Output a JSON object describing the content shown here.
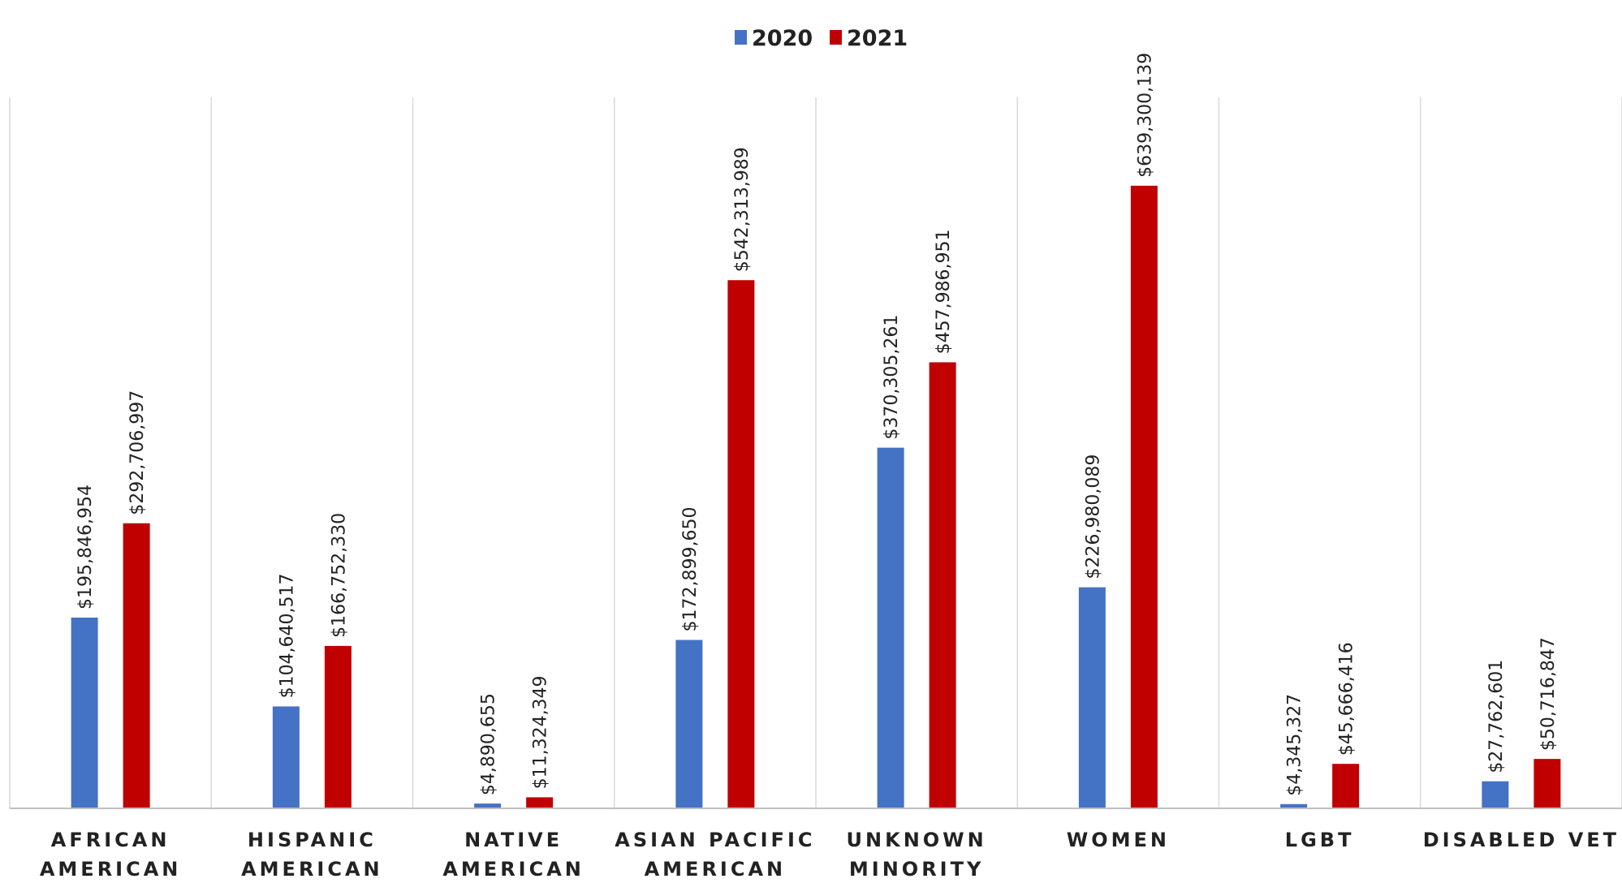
{
  "chart_data": {
    "type": "bar",
    "categories": [
      [
        "AFRICAN",
        "AMERICAN"
      ],
      [
        "HISPANIC",
        "AMERICAN"
      ],
      [
        "NATIVE",
        "AMERICAN"
      ],
      [
        "ASIAN PACIFIC",
        "AMERICAN"
      ],
      [
        "UNKNOWN",
        "MINORITY"
      ],
      [
        "WOMEN"
      ],
      [
        "LGBT"
      ],
      [
        "DISABLED VET"
      ]
    ],
    "series": [
      {
        "name": "2020",
        "color": "#4472C4",
        "values": [
          195846954,
          104640517,
          4890655,
          172899650,
          370305261,
          226980089,
          4345327,
          27762601
        ],
        "labels": [
          "$195,846,954",
          "$104,640,517",
          "$4,890,655",
          "$172,899,650",
          "$370,305,261",
          "$226,980,089",
          "$4,345,327",
          "$27,762,601"
        ]
      },
      {
        "name": "2021",
        "color": "#C00000",
        "values": [
          292706997,
          166752330,
          11324349,
          542313989,
          457986951,
          639300139,
          45666416,
          50716847
        ],
        "labels": [
          "$292,706,997",
          "$166,752,330",
          "$11,324,349",
          "$542,313,989",
          "$457,986,951",
          "$639,300,139",
          "$45,666,416",
          "$50,716,847"
        ]
      }
    ],
    "title": "",
    "xlabel": "",
    "ylabel": "",
    "ylim": [
      0,
      700000000
    ],
    "grid": "vertical-category-separators",
    "legend": "top-center"
  }
}
